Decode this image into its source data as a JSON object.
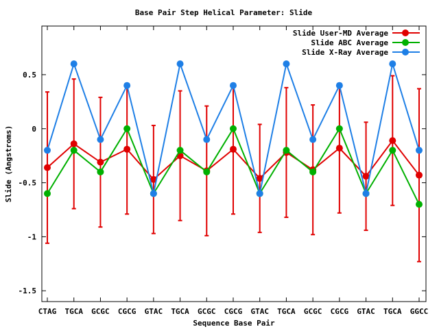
{
  "chart_data": {
    "type": "line",
    "title": "Base Pair Step Helical Parameter: Slide",
    "xlabel": "Sequence Base Pair",
    "ylabel": "Slide (Angstroms)",
    "ylim": [
      -1.6,
      0.95
    ],
    "yticks": [
      -1.5,
      -1,
      -0.5,
      0,
      0.5
    ],
    "ytick_labels": [
      "-1.5",
      "-1",
      "-0.5",
      "0",
      "0.5"
    ],
    "categories": [
      "CTAG",
      "TGCA",
      "GCGC",
      "CGCG",
      "GTAC",
      "TGCA",
      "GCGC",
      "CGCG",
      "GTAC",
      "TGCA",
      "GCGC",
      "CGCG",
      "GTAC",
      "TGCA",
      "GGCC"
    ],
    "legend_position": "top-right",
    "series": [
      {
        "name": "Slide User-MD Average",
        "color": "#e00000",
        "values": [
          -0.36,
          -0.14,
          -0.31,
          -0.19,
          -0.47,
          -0.25,
          -0.39,
          -0.19,
          -0.46,
          -0.22,
          -0.38,
          -0.18,
          -0.44,
          -0.11,
          -0.43
        ],
        "errors": [
          0.7,
          0.6,
          0.6,
          0.6,
          0.5,
          0.6,
          0.6,
          0.6,
          0.5,
          0.6,
          0.6,
          0.6,
          0.5,
          0.6,
          0.8
        ]
      },
      {
        "name": "Slide ABC Average",
        "color": "#00b000",
        "values": [
          -0.6,
          -0.2,
          -0.4,
          0.0,
          -0.6,
          -0.2,
          -0.4,
          0.0,
          -0.6,
          -0.2,
          -0.4,
          0.0,
          -0.6,
          -0.2,
          -0.7
        ]
      },
      {
        "name": "Slide X-Ray Average",
        "color": "#1e7fe6",
        "values": [
          -0.2,
          0.6,
          -0.1,
          0.4,
          -0.6,
          0.6,
          -0.1,
          0.4,
          -0.6,
          0.6,
          -0.1,
          0.4,
          -0.6,
          0.6,
          -0.2
        ]
      }
    ]
  }
}
